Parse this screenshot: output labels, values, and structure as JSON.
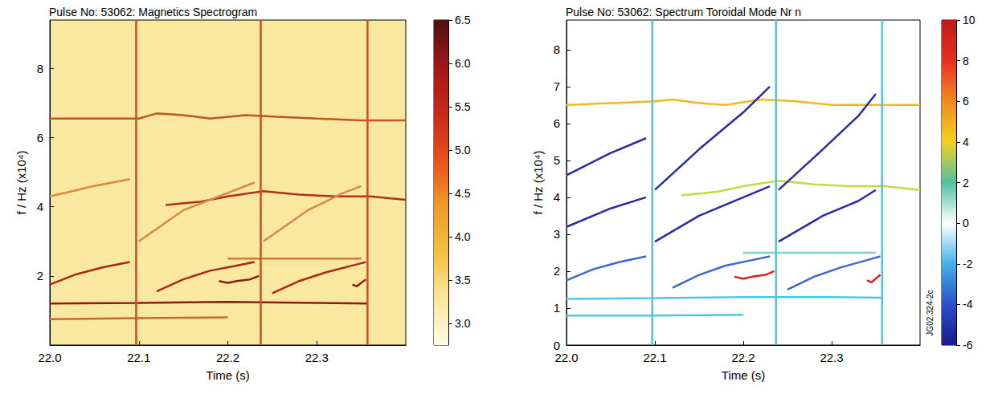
{
  "chart_data": [
    {
      "type": "line",
      "title": "Pulse No: 53062: Magnetics Spectrogram",
      "xlabel": "Time (s)",
      "ylabel": "f / Hz (x10⁴)",
      "xlim": [
        22.0,
        22.4
      ],
      "xticks": [
        {
          "value": 22.0,
          "label": "22.0"
        },
        {
          "value": 22.1,
          "label": "22.1"
        },
        {
          "value": 22.2,
          "label": "22.2"
        },
        {
          "value": 22.3,
          "label": "22.3"
        }
      ],
      "ylim": [
        0,
        9.4
      ],
      "yticks": [
        2,
        4,
        6,
        8
      ],
      "grid": false,
      "colorbar": {
        "range": [
          2.75,
          6.5
        ],
        "ticks": [
          {
            "value": 3,
            "label": "3.0"
          },
          3.5,
          {
            "value": 4,
            "label": "4.0"
          },
          4.5,
          {
            "value": 5,
            "label": "5.0"
          },
          5.5,
          {
            "value": 6,
            "label": "6.0"
          },
          6.5
        ]
      },
      "series": [
        {
          "color": "#c0561e",
          "x": [
            22.0,
            22.05,
            22.1,
            22.12,
            22.15,
            22.18,
            22.22,
            22.26,
            22.3,
            22.35,
            22.4
          ],
          "values": [
            6.55,
            6.55,
            6.55,
            6.7,
            6.65,
            6.55,
            6.65,
            6.6,
            6.55,
            6.5,
            6.5
          ]
        },
        {
          "color": "#b0301a",
          "x": [
            22.13,
            22.17,
            22.2,
            22.24,
            22.28,
            22.32,
            22.36,
            22.4
          ],
          "values": [
            4.05,
            4.15,
            4.3,
            4.45,
            4.35,
            4.3,
            4.3,
            4.2
          ]
        },
        {
          "color": "#d88a40",
          "x": [
            22.0,
            22.05,
            22.09
          ],
          "values": [
            4.3,
            4.6,
            4.8
          ]
        },
        {
          "color": "#d88a40",
          "x": [
            22.1,
            22.15,
            22.2,
            22.23
          ],
          "values": [
            3.0,
            3.9,
            4.4,
            4.7
          ]
        },
        {
          "color": "#d88a40",
          "x": [
            22.24,
            22.29,
            22.33,
            22.35
          ],
          "values": [
            3.0,
            3.9,
            4.4,
            4.6
          ]
        },
        {
          "color": "#a82818",
          "x": [
            22.0,
            22.03,
            22.06,
            22.09
          ],
          "values": [
            1.75,
            2.05,
            2.25,
            2.4
          ]
        },
        {
          "color": "#a82818",
          "x": [
            22.12,
            22.15,
            22.18,
            22.21,
            22.23
          ],
          "values": [
            1.55,
            1.9,
            2.15,
            2.3,
            2.4
          ]
        },
        {
          "color": "#a82818",
          "x": [
            22.25,
            22.28,
            22.31,
            22.34,
            22.355
          ],
          "values": [
            1.5,
            1.85,
            2.1,
            2.3,
            2.4
          ]
        },
        {
          "color": "#8c1c10",
          "x": [
            22.19,
            22.2,
            22.21,
            22.225,
            22.235
          ],
          "values": [
            1.85,
            1.8,
            1.85,
            1.9,
            2.0
          ]
        },
        {
          "color": "#8c1c10",
          "x": [
            22.34,
            22.345,
            22.35,
            22.355
          ],
          "values": [
            1.75,
            1.7,
            1.8,
            1.9
          ]
        },
        {
          "color": "#d07a3a",
          "x": [
            22.2,
            22.35
          ],
          "values": [
            2.5,
            2.5
          ]
        },
        {
          "color": "#8c1c10",
          "x": [
            22.0,
            22.1,
            22.2,
            22.3,
            22.357
          ],
          "values": [
            1.2,
            1.22,
            1.25,
            1.22,
            1.2
          ]
        },
        {
          "color": "#c86a30",
          "x": [
            22.0,
            22.1,
            22.2
          ],
          "values": [
            0.75,
            0.78,
            0.8
          ]
        },
        {
          "color": "#c8501c",
          "x": [
            22.097,
            22.097
          ],
          "values": [
            0,
            9.4
          ]
        },
        {
          "color": "#c8501c",
          "x": [
            22.237,
            22.237
          ],
          "values": [
            0,
            9.4
          ]
        },
        {
          "color": "#c8501c",
          "x": [
            22.357,
            22.357
          ],
          "values": [
            0,
            9.4
          ]
        }
      ]
    },
    {
      "type": "line",
      "title": "Pulse No: 53062: Spectrum Toroidal Mode Nr n",
      "xlabel": "Time (s)",
      "ylabel": "f / Hz (x10⁴)",
      "xlim": [
        22.0,
        22.4
      ],
      "xticks": [
        {
          "value": 22.0,
          "label": "22.0"
        },
        {
          "value": 22.1,
          "label": "22.1"
        },
        {
          "value": 22.2,
          "label": "22.2"
        },
        {
          "value": 22.3,
          "label": "22.3"
        }
      ],
      "ylim": [
        0,
        8.8
      ],
      "yticks": [
        0,
        1,
        2,
        3,
        4,
        5,
        6,
        7,
        8
      ],
      "grid": false,
      "annotations": [
        "JG02.324-2c"
      ],
      "colorbar": {
        "range": [
          -6,
          10
        ],
        "ticks": [
          -6,
          -4,
          -2,
          0,
          2,
          4,
          6,
          8,
          10
        ]
      },
      "series": [
        {
          "color": "#f5b820",
          "x": [
            22.0,
            22.05,
            22.1,
            22.12,
            22.15,
            22.18,
            22.22,
            22.26,
            22.3,
            22.35,
            22.4
          ],
          "values": [
            6.5,
            6.55,
            6.6,
            6.65,
            6.55,
            6.5,
            6.65,
            6.6,
            6.5,
            6.5,
            6.5
          ]
        },
        {
          "color": "#c8d840",
          "x": [
            22.13,
            22.17,
            22.2,
            22.24,
            22.28,
            22.32,
            22.36,
            22.4
          ],
          "values": [
            4.05,
            4.15,
            4.3,
            4.45,
            4.35,
            4.3,
            4.3,
            4.2
          ]
        },
        {
          "color": "#2a2aa8",
          "x": [
            22.0,
            22.05,
            22.09
          ],
          "values": [
            4.6,
            5.2,
            5.6
          ]
        },
        {
          "color": "#2a2aa8",
          "x": [
            22.1,
            22.15,
            22.2,
            22.23
          ],
          "values": [
            4.2,
            5.3,
            6.3,
            7.0
          ]
        },
        {
          "color": "#2a2aa8",
          "x": [
            22.24,
            22.29,
            22.33,
            22.35
          ],
          "values": [
            4.2,
            5.3,
            6.2,
            6.8
          ]
        },
        {
          "color": "#2a2aa8",
          "x": [
            22.0,
            22.05,
            22.09
          ],
          "values": [
            3.2,
            3.7,
            4.0
          ]
        },
        {
          "color": "#2a2aa8",
          "x": [
            22.1,
            22.15,
            22.2,
            22.23
          ],
          "values": [
            2.8,
            3.5,
            4.0,
            4.3
          ]
        },
        {
          "color": "#2a2aa8",
          "x": [
            22.24,
            22.29,
            22.33,
            22.35
          ],
          "values": [
            2.8,
            3.5,
            3.9,
            4.2
          ]
        },
        {
          "color": "#3a6ad0",
          "x": [
            22.0,
            22.03,
            22.06,
            22.09
          ],
          "values": [
            1.75,
            2.05,
            2.25,
            2.4
          ]
        },
        {
          "color": "#3a6ad0",
          "x": [
            22.12,
            22.15,
            22.18,
            22.21,
            22.23
          ],
          "values": [
            1.55,
            1.9,
            2.15,
            2.3,
            2.4
          ]
        },
        {
          "color": "#3a6ad0",
          "x": [
            22.25,
            22.28,
            22.31,
            22.34,
            22.355
          ],
          "values": [
            1.5,
            1.85,
            2.1,
            2.3,
            2.4
          ]
        },
        {
          "color": "#e02020",
          "x": [
            22.19,
            22.2,
            22.21,
            22.225,
            22.235
          ],
          "values": [
            1.85,
            1.8,
            1.85,
            1.9,
            2.0
          ]
        },
        {
          "color": "#e02020",
          "x": [
            22.34,
            22.345,
            22.35,
            22.355
          ],
          "values": [
            1.75,
            1.7,
            1.8,
            1.9
          ]
        },
        {
          "color": "#7fd0c8",
          "x": [
            22.2,
            22.35
          ],
          "values": [
            2.5,
            2.5
          ]
        },
        {
          "color": "#4fc8e8",
          "x": [
            22.0,
            22.1,
            22.2,
            22.3,
            22.357
          ],
          "values": [
            1.25,
            1.27,
            1.3,
            1.3,
            1.28
          ]
        },
        {
          "color": "#4fc8e8",
          "x": [
            22.0,
            22.1,
            22.2
          ],
          "values": [
            0.8,
            0.8,
            0.82
          ]
        },
        {
          "color": "#5fc0d0",
          "x": [
            22.097,
            22.097
          ],
          "values": [
            0,
            8.8
          ]
        },
        {
          "color": "#5fc0d0",
          "x": [
            22.237,
            22.237
          ],
          "values": [
            0,
            8.8
          ]
        },
        {
          "color": "#5fc0d0",
          "x": [
            22.357,
            22.357
          ],
          "values": [
            0,
            8.8
          ]
        }
      ]
    }
  ]
}
